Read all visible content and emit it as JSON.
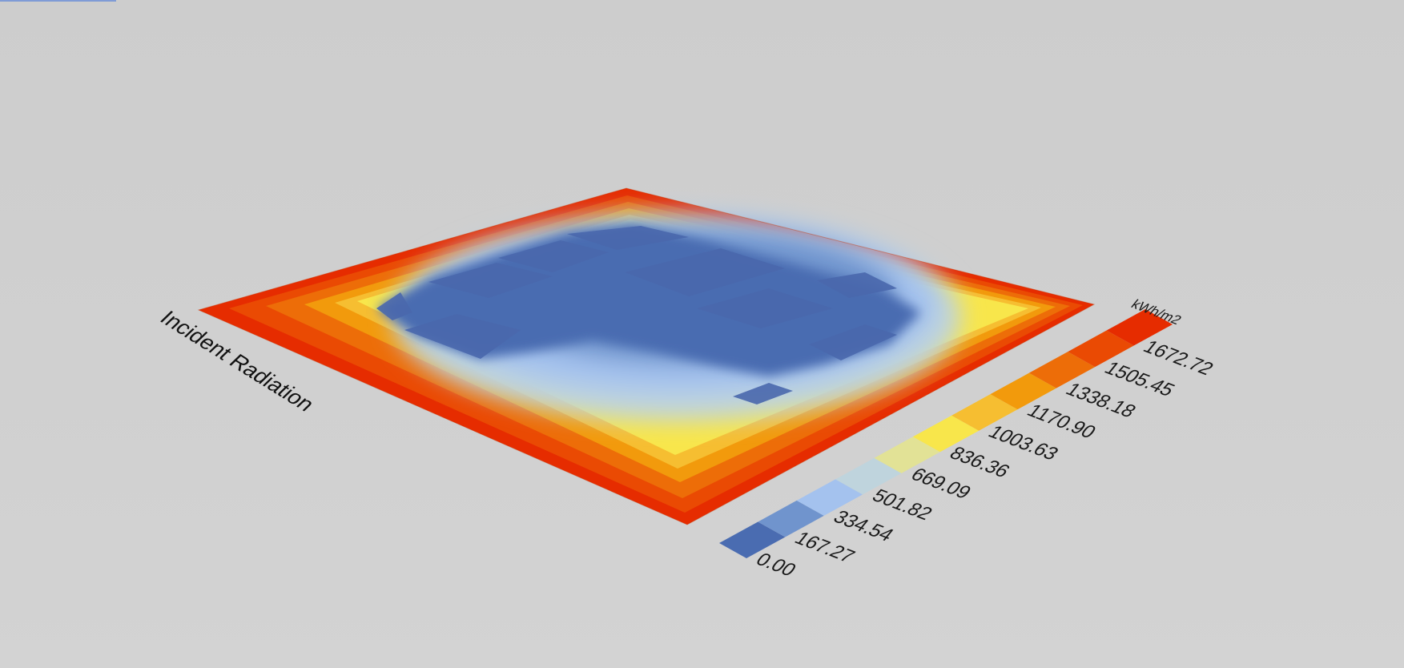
{
  "viewer": {
    "title": "Incident Radiation",
    "background": "#d0d0d0"
  },
  "legend": {
    "unit": "kWh/m2",
    "ticks": [
      "0.00",
      "167.27",
      "334.54",
      "501.82",
      "669.09",
      "836.36",
      "1003.63",
      "1170.90",
      "1338.18",
      "1505.45",
      "1672.72"
    ],
    "colors": [
      "#4a6cb1",
      "#7094cd",
      "#a4c2ee",
      "#bfd4dd",
      "#e2e296",
      "#f8e64b",
      "#f6be31",
      "#f29a0c",
      "#ed6d08",
      "#ea4a03",
      "#e62c00"
    ]
  },
  "chart_data": {
    "type": "heatmap",
    "title": "Incident Radiation",
    "unit": "kWh/m2",
    "scale": {
      "min": 0.0,
      "max": 1672.72,
      "ticks": [
        0.0,
        167.27,
        334.54,
        501.82,
        669.09,
        836.36,
        1003.63,
        1170.9,
        1338.18,
        1505.45,
        1672.72
      ]
    },
    "colors": {
      "low": "#4a6cb1",
      "high": "#e62c00"
    }
  }
}
